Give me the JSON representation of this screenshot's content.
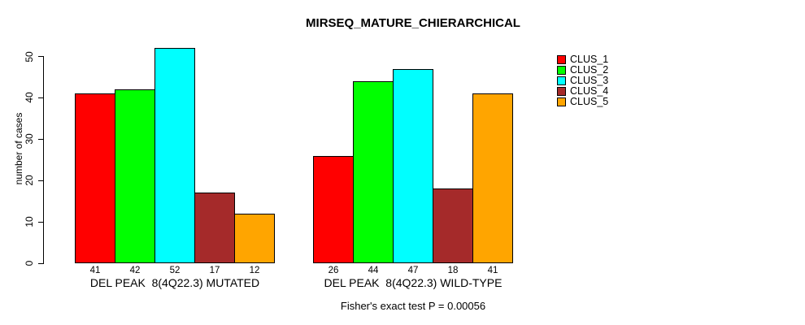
{
  "title": "MIRSEQ_MATURE_CHIERARCHICAL",
  "chart_data": {
    "type": "bar",
    "title": "MIRSEQ_MATURE_CHIERARCHICAL",
    "ylabel": "number of cases",
    "xlabel": "",
    "annotation": "Fisher's exact test P = 0.00056",
    "groups": [
      "DEL PEAK  8(4Q22.3) MUTATED",
      "DEL PEAK  8(4Q22.3) WILD-TYPE"
    ],
    "series": [
      {
        "name": "CLUS_1",
        "color": "#ff0000",
        "values": [
          41,
          26
        ]
      },
      {
        "name": "CLUS_2",
        "color": "#00ff00",
        "values": [
          42,
          44
        ]
      },
      {
        "name": "CLUS_3",
        "color": "#00ffff",
        "values": [
          52,
          47
        ]
      },
      {
        "name": "CLUS_4",
        "color": "#a52a2a",
        "values": [
          17,
          18
        ]
      },
      {
        "name": "CLUS_5",
        "color": "#ffa500",
        "values": [
          12,
          41
        ]
      }
    ],
    "yticks": [
      0,
      10,
      20,
      30,
      40,
      50
    ],
    "ylim": [
      0,
      52
    ],
    "bar_value_labels_shown": true,
    "legend_position": "right",
    "grid": false,
    "text_color": "#000000",
    "background_color": "#ffffff"
  }
}
